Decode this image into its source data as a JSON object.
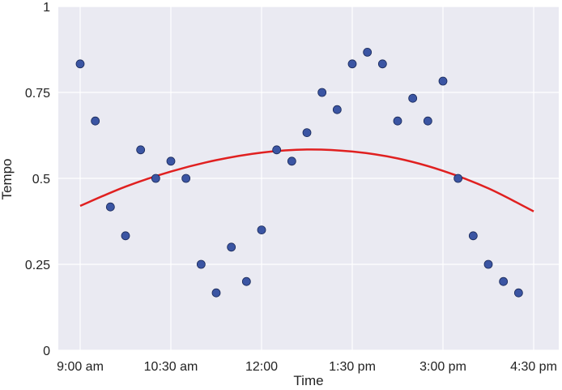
{
  "chart_data": {
    "type": "scatter",
    "xlabel": "Time",
    "ylabel": "Tempo",
    "x_unit": "time of day",
    "xlim": [
      "9:00 am",
      "4:30 pm"
    ],
    "ylim": [
      0,
      1
    ],
    "x_ticks": [
      {
        "time": "9:00 am",
        "label": "9:00 am"
      },
      {
        "time": "10:30 am",
        "label": "10:30 am"
      },
      {
        "time": "12:00 pm",
        "label": "12:00"
      },
      {
        "time": "1:30 pm",
        "label": "1:30 pm"
      },
      {
        "time": "3:00 pm",
        "label": "3:00 pm"
      },
      {
        "time": "4:30 pm",
        "label": "4:30 pm"
      }
    ],
    "y_ticks": [
      {
        "value": 0,
        "label": "0"
      },
      {
        "value": 0.25,
        "label": "0.25"
      },
      {
        "value": 0.5,
        "label": "0.5"
      },
      {
        "value": 0.75,
        "label": "0.75"
      },
      {
        "value": 1,
        "label": "1"
      }
    ],
    "grid": true,
    "background": "#eaeaf2",
    "series": [
      {
        "kind": "scatter",
        "color": "#3b55a3",
        "points": [
          {
            "x": "9:00 am",
            "y": 0.833
          },
          {
            "x": "9:15 am",
            "y": 0.667
          },
          {
            "x": "9:30 am",
            "y": 0.417
          },
          {
            "x": "9:45 am",
            "y": 0.333
          },
          {
            "x": "10:00 am",
            "y": 0.583
          },
          {
            "x": "10:15 am",
            "y": 0.5
          },
          {
            "x": "10:30 am",
            "y": 0.55
          },
          {
            "x": "10:45 am",
            "y": 0.5
          },
          {
            "x": "11:00 am",
            "y": 0.25
          },
          {
            "x": "11:15 am",
            "y": 0.167
          },
          {
            "x": "11:30 am",
            "y": 0.3
          },
          {
            "x": "11:45 am",
            "y": 0.2
          },
          {
            "x": "12:00 pm",
            "y": 0.35
          },
          {
            "x": "12:15 pm",
            "y": 0.583
          },
          {
            "x": "12:30 pm",
            "y": 0.55
          },
          {
            "x": "12:45 pm",
            "y": 0.633
          },
          {
            "x": "1:00 pm",
            "y": 0.75
          },
          {
            "x": "1:15 pm",
            "y": 0.7
          },
          {
            "x": "1:30 pm",
            "y": 0.833
          },
          {
            "x": "1:45 pm",
            "y": 0.867
          },
          {
            "x": "2:00 pm",
            "y": 0.833
          },
          {
            "x": "2:15 pm",
            "y": 0.667
          },
          {
            "x": "2:30 pm",
            "y": 0.733
          },
          {
            "x": "2:45 pm",
            "y": 0.667
          },
          {
            "x": "3:00 pm",
            "y": 0.783
          },
          {
            "x": "3:15 pm",
            "y": 0.5
          },
          {
            "x": "3:30 pm",
            "y": 0.333
          },
          {
            "x": "3:45 pm",
            "y": 0.25
          },
          {
            "x": "4:00 pm",
            "y": 0.2
          },
          {
            "x": "4:15 pm",
            "y": 0.167
          }
        ]
      },
      {
        "kind": "line",
        "color": "#e02020",
        "points": [
          {
            "x": "9:00 am",
            "y": 0.42
          },
          {
            "x": "9:45 am",
            "y": 0.476
          },
          {
            "x": "10:30 am",
            "y": 0.52
          },
          {
            "x": "11:15 am",
            "y": 0.553
          },
          {
            "x": "12:00 pm",
            "y": 0.575
          },
          {
            "x": "12:45 pm",
            "y": 0.584
          },
          {
            "x": "1:30 pm",
            "y": 0.578
          },
          {
            "x": "2:15 pm",
            "y": 0.558
          },
          {
            "x": "3:00 pm",
            "y": 0.522
          },
          {
            "x": "3:45 pm",
            "y": 0.471
          },
          {
            "x": "4:30 pm",
            "y": 0.404
          }
        ]
      }
    ]
  }
}
